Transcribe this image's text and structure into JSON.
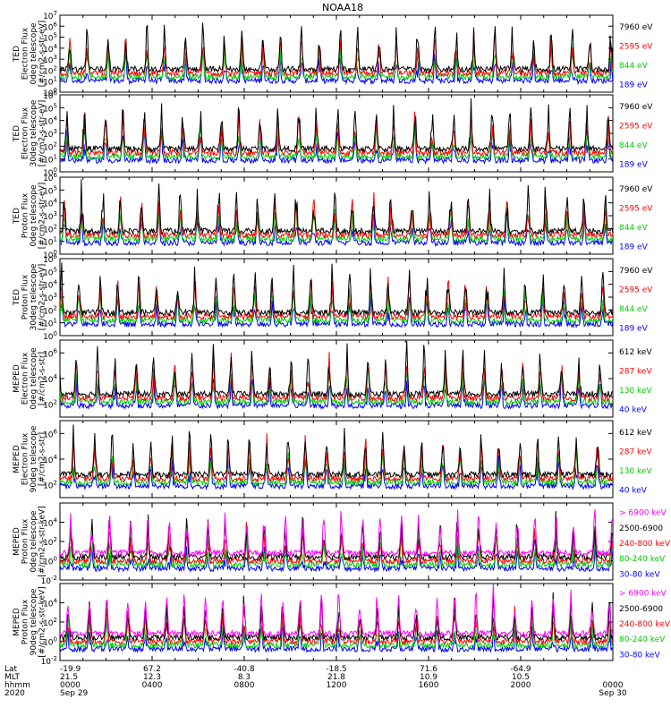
{
  "chart_data": {
    "title": "NOAA18",
    "type": "line",
    "x_start": "2020 Sep 29 00:00",
    "x_end": "2020 Sep 30 00:00",
    "panels": [
      {
        "ylabel": [
          "TED",
          "Electron Flux",
          "0deg telescope",
          "[#/cm2-s-str-eV]"
        ],
        "ylim": [
          "10^0",
          "10^7"
        ],
        "log": true,
        "yticks": [
          {
            "b": "10",
            "e": "0"
          },
          {
            "b": "10",
            "e": "1"
          },
          {
            "b": "10",
            "e": "2"
          },
          {
            "b": "10",
            "e": "3"
          },
          {
            "b": "10",
            "e": "4"
          },
          {
            "b": "10",
            "e": "5"
          },
          {
            "b": "10",
            "e": "6"
          },
          {
            "b": "10",
            "e": "7"
          }
        ],
        "series": [
          {
            "name": "7960 eV",
            "color": "#000000"
          },
          {
            "name": "2595 eV",
            "color": "#ff0000"
          },
          {
            "name": "844 eV",
            "color": "#00cc00"
          },
          {
            "name": "189 eV",
            "color": "#0000ff"
          }
        ]
      },
      {
        "ylabel": [
          "TED",
          "Electron Flux",
          "30deg telescope",
          "[#/cm2-s-str-eV]"
        ],
        "ylim": [
          "10^0",
          "10^6"
        ],
        "log": true,
        "yticks": [
          {
            "b": "10",
            "e": "0"
          },
          {
            "b": "10",
            "e": "1"
          },
          {
            "b": "10",
            "e": "2"
          },
          {
            "b": "10",
            "e": "3"
          },
          {
            "b": "10",
            "e": "4"
          },
          {
            "b": "10",
            "e": "5"
          },
          {
            "b": "10",
            "e": "6"
          }
        ],
        "series": [
          {
            "name": "7960 eV",
            "color": "#000000"
          },
          {
            "name": "2595 eV",
            "color": "#ff0000"
          },
          {
            "name": "844 eV",
            "color": "#00cc00"
          },
          {
            "name": "189 eV",
            "color": "#0000ff"
          }
        ]
      },
      {
        "ylabel": [
          "TED",
          "Proton Flux",
          "0deg telescope",
          "[#/cm2-s-str-eV]"
        ],
        "ylim": [
          "10^0",
          "10^6"
        ],
        "log": true,
        "yticks": [
          {
            "b": "10",
            "e": "0"
          },
          {
            "b": "10",
            "e": "1"
          },
          {
            "b": "10",
            "e": "2"
          },
          {
            "b": "10",
            "e": "3"
          },
          {
            "b": "10",
            "e": "4"
          },
          {
            "b": "10",
            "e": "5"
          },
          {
            "b": "10",
            "e": "6"
          }
        ],
        "series": [
          {
            "name": "7960 eV",
            "color": "#000000"
          },
          {
            "name": "2595 eV",
            "color": "#ff0000"
          },
          {
            "name": "844 eV",
            "color": "#00cc00"
          },
          {
            "name": "189 eV",
            "color": "#0000ff"
          }
        ]
      },
      {
        "ylabel": [
          "TED",
          "Proton Flux",
          "30deg telescope",
          "[#/cm2-s-str-eV]"
        ],
        "ylim": [
          "10^0",
          "10^6"
        ],
        "log": true,
        "yticks": [
          {
            "b": "10",
            "e": "0"
          },
          {
            "b": "10",
            "e": "1"
          },
          {
            "b": "10",
            "e": "2"
          },
          {
            "b": "10",
            "e": "3"
          },
          {
            "b": "10",
            "e": "4"
          },
          {
            "b": "10",
            "e": "5"
          },
          {
            "b": "10",
            "e": "6"
          }
        ],
        "series": [
          {
            "name": "7960 eV",
            "color": "#000000"
          },
          {
            "name": "2595 eV",
            "color": "#ff0000"
          },
          {
            "name": "844 eV",
            "color": "#00cc00"
          },
          {
            "name": "189 eV",
            "color": "#0000ff"
          }
        ]
      },
      {
        "ylabel": [
          "MEPED",
          "Electron Flux",
          "0deg telescope",
          "[#/cm2-s-str]"
        ],
        "ylim": [
          "10^1",
          "10^7"
        ],
        "log": true,
        "yticks": [
          {
            "b": "10",
            "e": "2"
          },
          {
            "b": "10",
            "e": "4"
          },
          {
            "b": "10",
            "e": "6"
          }
        ],
        "series": [
          {
            "name": "612 keV",
            "color": "#000000"
          },
          {
            "name": "287 keV",
            "color": "#ff0000"
          },
          {
            "name": "130 keV",
            "color": "#00cc00"
          },
          {
            "name": "40 keV",
            "color": "#0000ff"
          }
        ]
      },
      {
        "ylabel": [
          "MEPED",
          "Electron Flux",
          "90deg telescope",
          "[#/cm2-s-str]"
        ],
        "ylim": [
          "10^1",
          "10^7"
        ],
        "log": true,
        "yticks": [
          {
            "b": "10",
            "e": "2"
          },
          {
            "b": "10",
            "e": "4"
          },
          {
            "b": "10",
            "e": "6"
          }
        ],
        "series": [
          {
            "name": "612 keV",
            "color": "#000000"
          },
          {
            "name": "287 keV",
            "color": "#ff0000"
          },
          {
            "name": "130 keV",
            "color": "#00cc00"
          },
          {
            "name": "40 keV",
            "color": "#0000ff"
          }
        ]
      },
      {
        "ylabel": [
          "MEPED",
          "Proton Flux",
          "0deg telescope",
          "[#/cm2-s-str-keV]"
        ],
        "ylim": [
          "10^-2",
          "10^6"
        ],
        "log": true,
        "yticks": [
          {
            "b": "10",
            "e": "-2"
          },
          {
            "b": "10",
            "e": "0"
          },
          {
            "b": "10",
            "e": "2"
          },
          {
            "b": "10",
            "e": "4"
          }
        ],
        "series": [
          {
            "name": "> 6900 keV",
            "color": "#ff00ff"
          },
          {
            "name": "2500-6900",
            "color": "#000000"
          },
          {
            "name": "240-800 keV",
            "color": "#ff0000"
          },
          {
            "name": "80-240 keV",
            "color": "#00cc00"
          },
          {
            "name": "30-80 keV",
            "color": "#0000ff"
          }
        ]
      },
      {
        "ylabel": [
          "MEPED",
          "Proton Flux",
          "90deg telescope",
          "[#/cm2-s-str-keV]"
        ],
        "ylim": [
          "10^-2",
          "10^6"
        ],
        "log": true,
        "yticks": [
          {
            "b": "10",
            "e": "-2"
          },
          {
            "b": "10",
            "e": "0"
          },
          {
            "b": "10",
            "e": "2"
          },
          {
            "b": "10",
            "e": "4"
          }
        ],
        "series": [
          {
            "name": "> 6900 keV",
            "color": "#ff00ff"
          },
          {
            "name": "2500-6900",
            "color": "#000000"
          },
          {
            "name": "240-800 keV",
            "color": "#ff0000"
          },
          {
            "name": "80-240 keV",
            "color": "#00cc00"
          },
          {
            "name": "30-80 keV",
            "color": "#0000ff"
          }
        ]
      }
    ],
    "x_axis": {
      "row_labels": [
        "Lat",
        "MLT",
        "hhmm",
        "2020"
      ],
      "ticks": [
        {
          "frac": 0.0,
          "lat": "-19.9",
          "mlt": "21.5",
          "hhmm": "0000",
          "date": "Sep 29"
        },
        {
          "frac": 0.1667,
          "lat": "67.2",
          "mlt": "12.3",
          "hhmm": "0400",
          "date": ""
        },
        {
          "frac": 0.3333,
          "lat": "-40.8",
          "mlt": "8.3",
          "hhmm": "0800",
          "date": ""
        },
        {
          "frac": 0.5,
          "lat": "-18.5",
          "mlt": "21.8",
          "hhmm": "1200",
          "date": ""
        },
        {
          "frac": 0.6667,
          "lat": "71.6",
          "mlt": "10.9",
          "hhmm": "1600",
          "date": ""
        },
        {
          "frac": 0.8333,
          "lat": "-64.9",
          "mlt": "10.5",
          "hhmm": "2000",
          "date": ""
        },
        {
          "frac": 1.0,
          "lat": "",
          "mlt": "",
          "hhmm": "0000",
          "date": "Sep 30"
        }
      ]
    }
  }
}
